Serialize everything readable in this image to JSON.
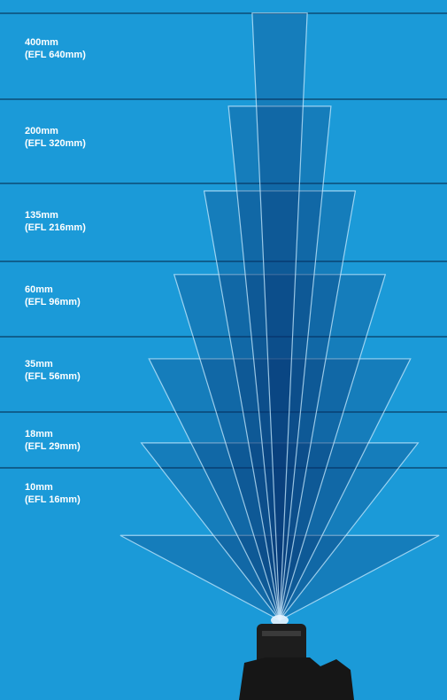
{
  "lenses": [
    {
      "focal": "400mm",
      "efl": "(EFL 640mm)"
    },
    {
      "focal": "200mm",
      "efl": "(EFL 320mm)"
    },
    {
      "focal": "135mm",
      "efl": "(EFL 216mm)"
    },
    {
      "focal": "60mm",
      "efl": "(EFL 96mm)"
    },
    {
      "focal": "35mm",
      "efl": "(EFL 56mm)"
    },
    {
      "focal": "18mm",
      "efl": "(EFL 29mm)"
    },
    {
      "focal": "10mm",
      "efl": "(EFL 16mm)"
    }
  ]
}
